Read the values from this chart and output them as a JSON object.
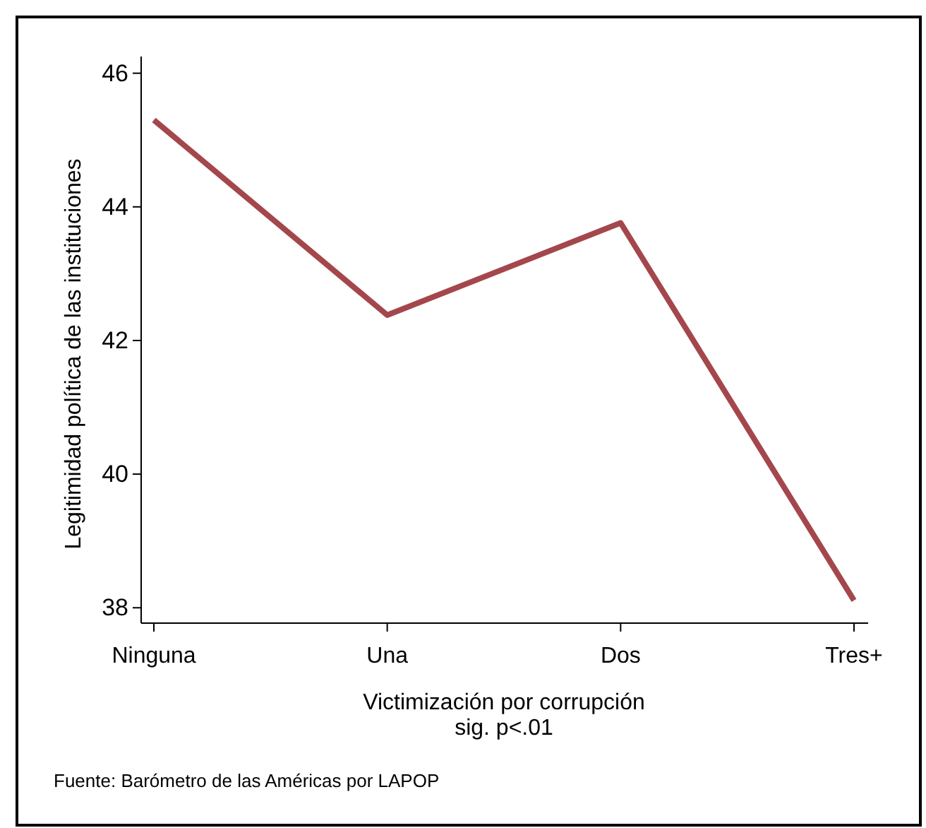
{
  "chart_data": {
    "type": "line",
    "xlabel": "Victimización por corrupción",
    "subtitle": "sig. p<.01",
    "ylabel": "Legitimidad política de las instituciones",
    "categories": [
      "Ninguna",
      "Una",
      "Dos",
      "Tres+"
    ],
    "series": [
      {
        "color": "#a4474c",
        "values": [
          45.3,
          42.38,
          43.76,
          38.11
        ]
      }
    ],
    "ylim": [
      37.77,
      46.25
    ],
    "yticks": [
      38,
      40,
      42,
      44,
      46
    ],
    "grid": false,
    "marker": "none",
    "line_style": "solid",
    "annotations": [
      "Fuente: Barómetro de las Américas por LAPOP"
    ]
  }
}
